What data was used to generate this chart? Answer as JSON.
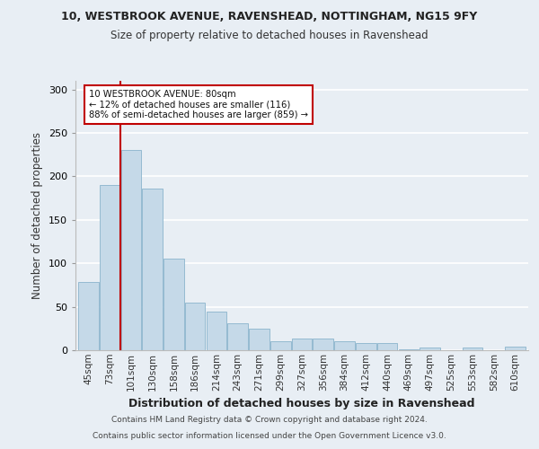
{
  "title1": "10, WESTBROOK AVENUE, RAVENSHEAD, NOTTINGHAM, NG15 9FY",
  "title2": "Size of property relative to detached houses in Ravenshead",
  "xlabel": "Distribution of detached houses by size in Ravenshead",
  "ylabel": "Number of detached properties",
  "categories": [
    "45sqm",
    "73sqm",
    "101sqm",
    "130sqm",
    "158sqm",
    "186sqm",
    "214sqm",
    "243sqm",
    "271sqm",
    "299sqm",
    "327sqm",
    "356sqm",
    "384sqm",
    "412sqm",
    "440sqm",
    "469sqm",
    "497sqm",
    "525sqm",
    "553sqm",
    "582sqm",
    "610sqm"
  ],
  "values": [
    79,
    190,
    230,
    186,
    105,
    55,
    44,
    31,
    25,
    10,
    13,
    13,
    10,
    8,
    8,
    1,
    3,
    0,
    3,
    0,
    4
  ],
  "bar_color": "#c5d9e8",
  "bar_edge_color": "#8ab4cc",
  "property_line_x": 1.5,
  "annotation_line1": "10 WESTBROOK AVENUE: 80sqm",
  "annotation_line2": "← 12% of detached houses are smaller (116)",
  "annotation_line3": "88% of semi-detached houses are larger (859) →",
  "annotation_box_color": "#c00000",
  "ylim": [
    0,
    310
  ],
  "yticks": [
    0,
    50,
    100,
    150,
    200,
    250,
    300
  ],
  "footnote1": "Contains HM Land Registry data © Crown copyright and database right 2024.",
  "footnote2": "Contains public sector information licensed under the Open Government Licence v3.0.",
  "bg_color": "#e8eef4",
  "plot_bg_color": "#e8eef4",
  "grid_color": "#ffffff"
}
